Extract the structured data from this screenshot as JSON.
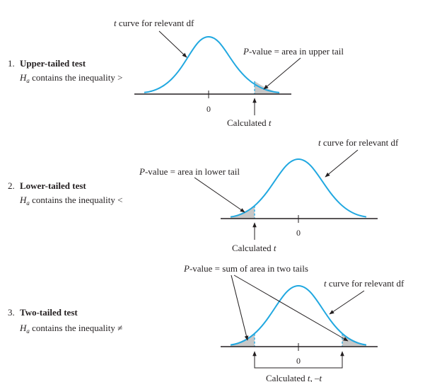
{
  "panels": [
    {
      "id": "upper",
      "number": "1.",
      "title": "Upper-tailed test",
      "hyp_H": "H",
      "hyp_sub": "a",
      "hyp_text": " contains the inequality >",
      "curve_label_t": "t",
      "curve_label_rest": " curve for relevant df",
      "pvalue_p": "P",
      "pvalue_rest": "-value = area in upper tail",
      "zero_label": "0",
      "calc_label": "Calculated ",
      "calc_t": "t"
    },
    {
      "id": "lower",
      "number": "2.",
      "title": "Lower-tailed test",
      "hyp_H": "H",
      "hyp_sub": "a",
      "hyp_text": " contains the inequality <",
      "curve_label_t": "t",
      "curve_label_rest": " curve for relevant df",
      "pvalue_p": "P",
      "pvalue_rest": "-value = area in lower tail",
      "zero_label": "0",
      "calc_label": "Calculated ",
      "calc_t": "t"
    },
    {
      "id": "two",
      "number": "3.",
      "title": "Two-tailed test",
      "hyp_H": "H",
      "hyp_sub": "a",
      "hyp_text": " contains the inequality ≠",
      "curve_label_t": "t",
      "curve_label_rest": " curve for relevant df",
      "pvalue_p": "P",
      "pvalue_rest": "-value = sum of area in two tails",
      "zero_label": "0",
      "calc_label": "Calculated ",
      "calc_t": "t",
      "calc_sep": ", –",
      "calc_t2": "t"
    }
  ],
  "colors": {
    "curve": "#21a8e0",
    "tail_fill": "#c8c8c8",
    "text": "#231f20"
  }
}
